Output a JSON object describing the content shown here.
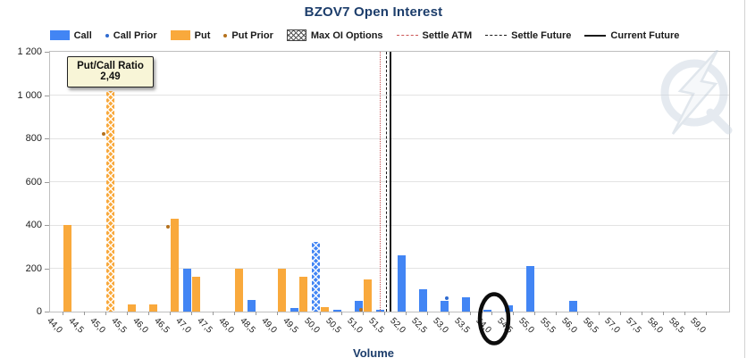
{
  "header": {
    "title": "BZOV7 Open Interest"
  },
  "legend": {
    "items": [
      {
        "label": "Call",
        "marker": "bar"
      },
      {
        "label": "Call Prior",
        "marker": "dot"
      },
      {
        "label": "Put",
        "marker": "bar"
      },
      {
        "label": "Put Prior",
        "marker": "dot"
      },
      {
        "label": "Max OI Options",
        "marker": "hatched-box"
      },
      {
        "label": "Settle ATM",
        "marker": "dashed-line"
      },
      {
        "label": "Settle Future",
        "marker": "dashed-line"
      },
      {
        "label": "Current Future",
        "marker": "solid-line"
      }
    ]
  },
  "colors": {
    "call": "#4285f4",
    "put": "#f9a93c",
    "call_prior": "#2f6bd0",
    "put_prior": "#b5711c",
    "settle_atm": "#cc5555",
    "future_line": "#1a1a1a",
    "title": "#1c3d6b",
    "tooltip_bg": "#f8f5d7"
  },
  "axes": {
    "x_label": "Volume",
    "y_ticks": [
      0,
      200,
      400,
      600,
      800,
      1000,
      1200
    ],
    "y_labels": [
      "0",
      "200",
      "400",
      "600",
      "800",
      "1 000",
      "1 200"
    ]
  },
  "tooltip": {
    "title": "Put/Call Ratio",
    "value": "2,49",
    "target_strike": "45,0"
  },
  "chart_data": {
    "type": "bar",
    "title": "BZOV7 Open Interest",
    "xlabel": "Volume",
    "ylabel": "",
    "ylim": [
      0,
      1200
    ],
    "ytick_step": 200,
    "grid": true,
    "legend_position": "top",
    "categories": [
      "44,0",
      "44,5",
      "45,0",
      "45,5",
      "46,0",
      "46,5",
      "47,0",
      "47,5",
      "48,0",
      "48,5",
      "49,0",
      "49,5",
      "50,0",
      "50,5",
      "51,0",
      "51,5",
      "52,0",
      "52,5",
      "53,0",
      "53,5",
      "54,0",
      "54,5",
      "55,0",
      "55,5",
      "56,0",
      "56,5",
      "57,0",
      "57,5",
      "58,0",
      "58,5",
      "59,0"
    ],
    "series": [
      {
        "name": "Call",
        "type": "bar",
        "values": [
          null,
          null,
          null,
          null,
          null,
          null,
          200,
          null,
          null,
          55,
          null,
          15,
          320,
          10,
          50,
          10,
          260,
          105,
          50,
          65,
          10,
          30,
          210,
          null,
          50,
          null,
          null,
          null,
          null,
          null,
          null
        ]
      },
      {
        "name": "Call Prior",
        "type": "point",
        "values": [
          null,
          null,
          null,
          null,
          null,
          null,
          null,
          null,
          null,
          null,
          null,
          null,
          null,
          null,
          null,
          null,
          null,
          null,
          60,
          null,
          null,
          null,
          null,
          null,
          null,
          null,
          null,
          null,
          null,
          null,
          null
        ]
      },
      {
        "name": "Put",
        "type": "bar",
        "values": [
          400,
          null,
          1020,
          35,
          35,
          430,
          160,
          null,
          200,
          null,
          200,
          160,
          20,
          null,
          150,
          null,
          null,
          null,
          null,
          null,
          null,
          null,
          null,
          null,
          null,
          null,
          null,
          null,
          null,
          null,
          null
        ]
      },
      {
        "name": "Put Prior",
        "type": "point",
        "values": [
          null,
          null,
          820,
          null,
          null,
          390,
          null,
          null,
          null,
          null,
          null,
          null,
          null,
          null,
          10,
          null,
          null,
          null,
          null,
          null,
          null,
          null,
          null,
          null,
          null,
          null,
          null,
          null,
          null,
          null,
          null
        ]
      }
    ],
    "max_oi": {
      "call": "50,0",
      "put": "45,0"
    },
    "lines": [
      {
        "label": "Settle ATM",
        "x": 51.4,
        "style": "dotted"
      },
      {
        "label": "Settle Future",
        "x": 51.55,
        "style": "dashed"
      },
      {
        "label": "Current Future",
        "x": 51.63,
        "style": "solid"
      }
    ],
    "annotations": {
      "tooltip": {
        "lines": [
          "Put/Call Ratio",
          "2,49"
        ],
        "target": "45,0"
      },
      "ellipse_highlight": {
        "target": "54,0"
      }
    }
  }
}
